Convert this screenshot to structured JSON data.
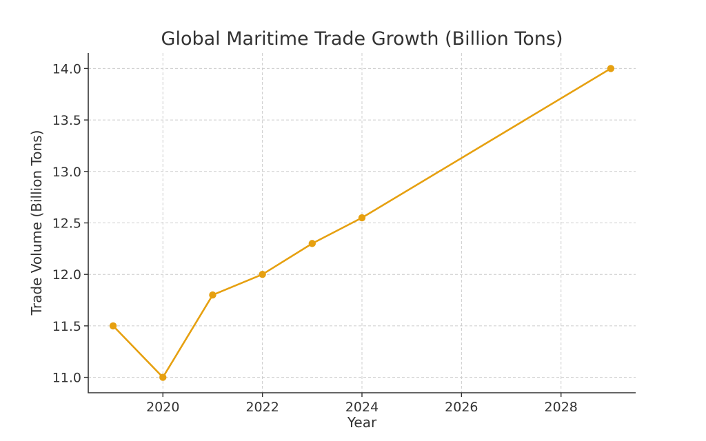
{
  "chart_data": {
    "type": "line",
    "title": "Global Maritime Trade Growth (Billion Tons)",
    "xlabel": "Year",
    "ylabel": "Trade Volume (Billion Tons)",
    "xlim": [
      2018.5,
      2029.5
    ],
    "ylim": [
      10.85,
      14.15
    ],
    "x_ticks": [
      2020,
      2022,
      2024,
      2026,
      2028
    ],
    "y_ticks": [
      "11.0",
      "11.5",
      "12.0",
      "12.5",
      "13.0",
      "13.5",
      "14.0"
    ],
    "grid": true,
    "series": [
      {
        "x": [
          2019,
          2020,
          2021,
          2022,
          2023,
          2024,
          2029
        ],
        "values": [
          11.5,
          11.0,
          11.8,
          12.0,
          12.3,
          12.55,
          14.0
        ],
        "color": "#E6A010",
        "marker": "circle"
      }
    ]
  }
}
